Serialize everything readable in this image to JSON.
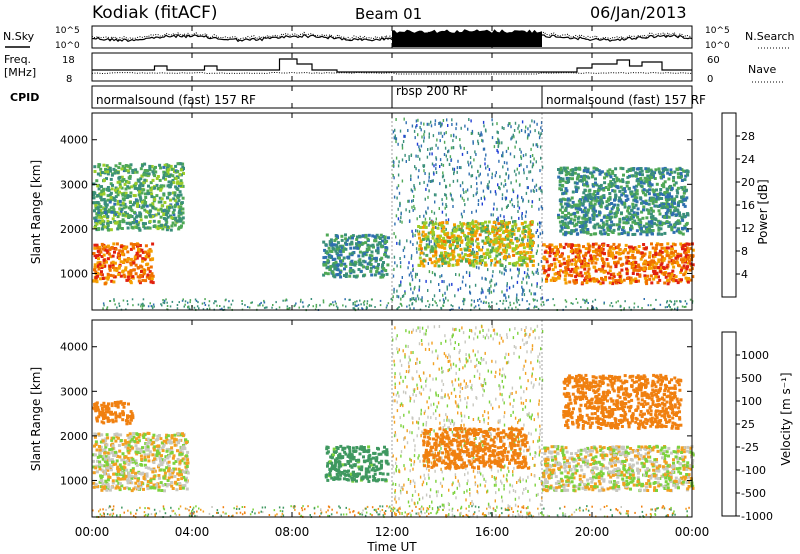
{
  "header": {
    "station": "Kodiak (fitACF)",
    "beam": "Beam 01",
    "date": "06/Jan/2013"
  },
  "strips": {
    "nsky_label": "N.Sky",
    "nsearch_label": "N.Search",
    "noise_ticks_left": [
      "10^5",
      "10^0"
    ],
    "noise_ticks_right": [
      "10^5",
      "10^0"
    ],
    "freq_label_1": "Freq.",
    "freq_label_2": "[MHz]",
    "freq_ticks": [
      "18",
      "8"
    ],
    "nave_label": "Nave",
    "nave_ticks": [
      "60",
      "0"
    ],
    "cpid_label": "CPID",
    "cpid_segments": [
      {
        "label": "normalsound (fast) 157 RF",
        "start_hour": 0,
        "end_hour": 12
      },
      {
        "label": "rbsp 200 RF",
        "start_hour": 12,
        "end_hour": 18
      },
      {
        "label": "normalsound (fast) 157 RF",
        "start_hour": 18,
        "end_hour": 24
      }
    ]
  },
  "panels": {
    "power_ylabel": "Slant Range [km]",
    "velocity_ylabel": "Slant Range [km]",
    "y_ticks": [
      "1000",
      "2000",
      "3000",
      "4000"
    ],
    "x_ticks": [
      "00:00",
      "04:00",
      "08:00",
      "12:00",
      "16:00",
      "20:00",
      "00:00"
    ],
    "xlabel": "Time UT"
  },
  "colorbars": {
    "power": {
      "label": "Power [dB]",
      "ticks": [
        "4",
        "8",
        "12",
        "16",
        "20",
        "24",
        "28"
      ],
      "colors": [
        "#1e3cd6",
        "#2f6fb0",
        "#3a8f7a",
        "#4fa856",
        "#9ccd2a",
        "#f4a000",
        "#f07000",
        "#e02010"
      ]
    },
    "velocity": {
      "label": "Velocity [m s⁻¹]",
      "ticks": [
        "1000",
        "500",
        "100",
        "25",
        "-25",
        "-100",
        "-500",
        "-1000"
      ],
      "colors": [
        "#2a3fc4",
        "#3a7ab0",
        "#3f9860",
        "#7cd23c",
        "#c8c8c0",
        "#f2a020",
        "#f08010",
        "#e82010"
      ]
    }
  },
  "chart_data": [
    {
      "type": "heatmap",
      "title": "Kodiak (fitACF) Beam 01 06/Jan/2013",
      "xlabel": "Time UT",
      "ylabel": "Slant Range [km]",
      "quantity": "Power [dB]",
      "xlim": [
        0,
        24
      ],
      "ylim": [
        180,
        4600
      ],
      "colorbar_range": [
        0,
        30
      ],
      "regions": [
        {
          "t_start": 0.0,
          "t_end": 2.4,
          "range_min": 800,
          "range_max": 1700,
          "value": 24
        },
        {
          "t_start": 0.0,
          "t_end": 3.6,
          "range_min": 2000,
          "range_max": 3500,
          "value": 12
        },
        {
          "t_start": 9.2,
          "t_end": 11.8,
          "range_min": 950,
          "range_max": 1900,
          "value": 10
        },
        {
          "t_start": 12.0,
          "t_end": 18.0,
          "range_min": 400,
          "range_max": 4500,
          "value": 8
        },
        {
          "t_start": 13.0,
          "t_end": 17.6,
          "range_min": 1200,
          "range_max": 2200,
          "value": 18
        },
        {
          "t_start": 18.0,
          "t_end": 24.0,
          "range_min": 800,
          "range_max": 1700,
          "value": 24
        },
        {
          "t_start": 18.6,
          "t_end": 23.8,
          "range_min": 1900,
          "range_max": 3400,
          "value": 10
        }
      ]
    },
    {
      "type": "heatmap",
      "title": "Kodiak (fitACF) Beam 01 06/Jan/2013",
      "xlabel": "Time UT",
      "ylabel": "Slant Range [km]",
      "quantity": "Velocity [m s^-1]",
      "xlim": [
        0,
        24
      ],
      "ylim": [
        180,
        4600
      ],
      "colorbar_range": [
        -1000,
        1000
      ],
      "regions": [
        {
          "t_start": 0.0,
          "t_end": 3.8,
          "range_min": 800,
          "range_max": 2100,
          "value": 0
        },
        {
          "t_start": 0.0,
          "t_end": 1.6,
          "range_min": 2300,
          "range_max": 2800,
          "value": -300
        },
        {
          "t_start": 9.3,
          "t_end": 11.8,
          "range_min": 1000,
          "range_max": 1800,
          "value": 150
        },
        {
          "t_start": 12.0,
          "t_end": 18.0,
          "range_min": 200,
          "range_max": 4500,
          "value": 0
        },
        {
          "t_start": 13.2,
          "t_end": 17.4,
          "range_min": 1300,
          "range_max": 2200,
          "value": -300
        },
        {
          "t_start": 18.0,
          "t_end": 24.0,
          "range_min": 800,
          "range_max": 1800,
          "value": 0
        },
        {
          "t_start": 18.8,
          "t_end": 23.5,
          "range_min": 2200,
          "range_max": 3400,
          "value": -200
        }
      ]
    }
  ]
}
